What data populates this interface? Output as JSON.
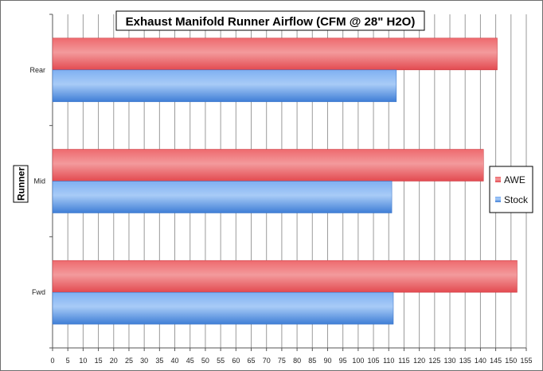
{
  "chart_data": {
    "type": "bar",
    "orientation": "horizontal",
    "title": "Exhaust Manifold Runner Airflow (CFM @ 28\" H2O)",
    "xlabel": "",
    "ylabel": "Runner",
    "categories": [
      "Rear",
      "Mid",
      "Fwd"
    ],
    "series": [
      {
        "name": "AWE",
        "values": [
          145.5,
          141,
          152
        ],
        "color": "#e8525a"
      },
      {
        "name": "Stock",
        "values": [
          112.5,
          111,
          111.5
        ],
        "color": "#4f8de0"
      }
    ],
    "xlim": [
      0,
      155
    ],
    "xticks": [
      "0",
      "5",
      "10",
      "15",
      "20",
      "25",
      "30",
      "35",
      "40",
      "45",
      "50",
      "55",
      "60",
      "65",
      "70",
      "75",
      "80",
      "85",
      "90",
      "95",
      "100",
      "105",
      "110",
      "115",
      "120",
      "125",
      "130",
      "135",
      "140",
      "145",
      "150",
      "155"
    ],
    "grid": true,
    "legend_position": "right"
  }
}
